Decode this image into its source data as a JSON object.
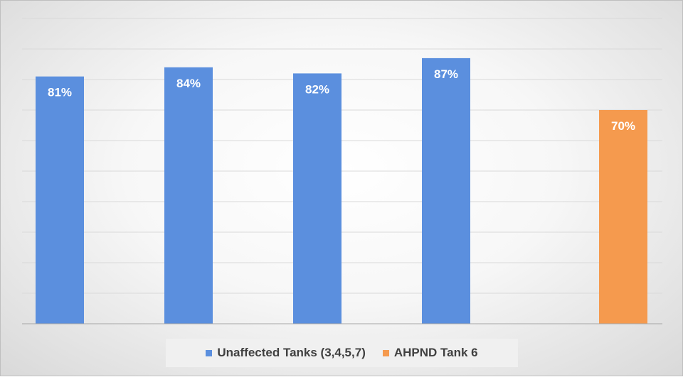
{
  "chart_data": {
    "type": "bar",
    "title": "",
    "xlabel": "",
    "ylabel": "",
    "ylim": [
      0,
      100
    ],
    "grid": true,
    "legend_position": "bottom",
    "bars": [
      {
        "value": 81,
        "label": "81%",
        "series": 0
      },
      {
        "value": 84,
        "label": "84%",
        "series": 0
      },
      {
        "value": 82,
        "label": "82%",
        "series": 0
      },
      {
        "value": 87,
        "label": "87%",
        "series": 0
      },
      {
        "value": 70,
        "label": "70%",
        "series": 1
      }
    ],
    "series": [
      {
        "name": "Unaffected Tanks (3,4,5,7)",
        "color": "#5b8fde"
      },
      {
        "name": "AHPND Tank 6",
        "color": "#f59a4e"
      }
    ]
  }
}
